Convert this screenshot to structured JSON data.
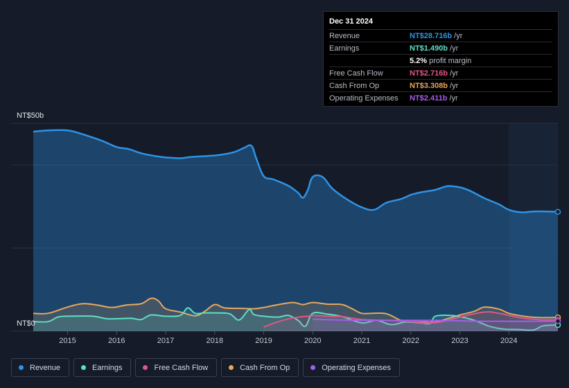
{
  "tooltip": {
    "date": "Dec 31 2024",
    "rows": [
      {
        "name": "Revenue",
        "value": "NT$28.716b",
        "unit": "/yr",
        "color": "#2e93e6"
      },
      {
        "name": "Earnings",
        "value": "NT$1.490b",
        "unit": "/yr",
        "color": "#5ee0c6"
      },
      {
        "name": "",
        "value": "5.2%",
        "unit": "profit margin",
        "color": "#ffffff"
      },
      {
        "name": "Free Cash Flow",
        "value": "NT$2.716b",
        "unit": "/yr",
        "color": "#e0568a"
      },
      {
        "name": "Cash From Op",
        "value": "NT$3.308b",
        "unit": "/yr",
        "color": "#e8a85c"
      },
      {
        "name": "Operating Expenses",
        "value": "NT$2.411b",
        "unit": "/yr",
        "color": "#a45ee8"
      }
    ]
  },
  "legend": [
    {
      "label": "Revenue",
      "color": "#2e93e6"
    },
    {
      "label": "Earnings",
      "color": "#5ee0c6"
    },
    {
      "label": "Free Cash Flow",
      "color": "#e0568a"
    },
    {
      "label": "Cash From Op",
      "color": "#e8a85c"
    },
    {
      "label": "Operating Expenses",
      "color": "#a45ee8"
    }
  ],
  "chart_data": {
    "type": "area",
    "title": "",
    "xlabel": "",
    "ylabel": "",
    "y_axis_labels": {
      "top": "NT$50b",
      "bottom": "NT$0"
    },
    "ylim": [
      0,
      50
    ],
    "xlim": [
      2014.3,
      2025.0
    ],
    "x_ticks": [
      2015,
      2016,
      2017,
      2018,
      2019,
      2020,
      2021,
      2022,
      2023,
      2024
    ],
    "x_tick_labels": [
      "2015",
      "2016",
      "2017",
      "2018",
      "2019",
      "2020",
      "2021",
      "2022",
      "2023",
      "2024"
    ],
    "highlight_from": 2024.0,
    "series": [
      {
        "name": "Revenue",
        "color": "#2e93e6",
        "x": [
          2014.3,
          2014.6,
          2015.0,
          2015.3,
          2015.7,
          2016.0,
          2016.25,
          2016.5,
          2016.8,
          2017.0,
          2017.3,
          2017.5,
          2017.8,
          2018.1,
          2018.4,
          2018.6,
          2018.75,
          2018.85,
          2019.0,
          2019.2,
          2019.5,
          2019.7,
          2019.8,
          2019.9,
          2020.0,
          2020.2,
          2020.4,
          2020.7,
          2021.0,
          2021.25,
          2021.5,
          2021.8,
          2022.0,
          2022.2,
          2022.5,
          2022.75,
          2023.0,
          2023.2,
          2023.5,
          2023.8,
          2024.0,
          2024.25,
          2024.5,
          2024.75,
          2025.0
        ],
        "values": [
          48.0,
          48.3,
          48.3,
          47.4,
          45.8,
          44.3,
          43.8,
          42.8,
          42.1,
          41.8,
          41.6,
          41.9,
          42.1,
          42.4,
          43.1,
          44.1,
          44.6,
          41.5,
          37.3,
          36.5,
          35.0,
          33.3,
          32.1,
          34.0,
          37.1,
          37.1,
          34.3,
          31.7,
          29.8,
          29.2,
          30.9,
          31.8,
          32.8,
          33.4,
          34.0,
          34.9,
          34.6,
          33.8,
          32.0,
          30.5,
          29.2,
          28.6,
          28.8,
          28.8,
          28.716
        ]
      },
      {
        "name": "Cash From Op",
        "color": "#e8a85c",
        "x": [
          2014.3,
          2014.6,
          2015.0,
          2015.3,
          2015.6,
          2015.9,
          2016.2,
          2016.5,
          2016.7,
          2016.85,
          2017.0,
          2017.3,
          2017.6,
          2017.8,
          2018.0,
          2018.2,
          2018.5,
          2018.8,
          2019.0,
          2019.3,
          2019.6,
          2019.8,
          2020.0,
          2020.3,
          2020.6,
          2020.8,
          2021.0,
          2021.2,
          2021.5,
          2021.8,
          2022.0,
          2022.3,
          2022.5,
          2022.8,
          2023.0,
          2023.3,
          2023.5,
          2023.8,
          2024.0,
          2024.3,
          2024.6,
          2025.0
        ],
        "values": [
          4.3,
          4.3,
          5.8,
          6.6,
          6.3,
          5.7,
          6.3,
          6.6,
          7.9,
          7.3,
          5.4,
          4.6,
          3.7,
          4.8,
          6.4,
          5.6,
          5.5,
          5.4,
          5.7,
          6.4,
          6.9,
          6.4,
          6.9,
          6.5,
          6.4,
          5.4,
          4.3,
          4.3,
          4.2,
          2.6,
          2.3,
          2.2,
          2.2,
          3.2,
          3.9,
          4.8,
          5.8,
          5.3,
          4.3,
          3.6,
          3.3,
          3.308
        ]
      },
      {
        "name": "Earnings",
        "color": "#5ee0c6",
        "x": [
          2014.3,
          2014.6,
          2014.8,
          2015.0,
          2015.5,
          2015.8,
          2016.0,
          2016.3,
          2016.5,
          2016.7,
          2017.0,
          2017.3,
          2017.45,
          2017.6,
          2017.8,
          2018.0,
          2018.3,
          2018.5,
          2018.7,
          2018.8,
          2019.0,
          2019.3,
          2019.5,
          2019.7,
          2019.85,
          2020.0,
          2020.3,
          2020.6,
          2021.0,
          2021.3,
          2021.6,
          2021.9,
          2022.2,
          2022.4,
          2022.5,
          2022.8,
          2023.0,
          2023.3,
          2023.6,
          2023.9,
          2024.2,
          2024.5,
          2024.7,
          2025.0
        ],
        "values": [
          2.3,
          2.3,
          3.4,
          3.6,
          3.6,
          3.0,
          3.0,
          3.1,
          2.8,
          3.9,
          3.6,
          3.8,
          5.6,
          4.3,
          4.4,
          4.4,
          4.2,
          2.7,
          5.2,
          4.0,
          3.6,
          3.4,
          3.8,
          2.6,
          1.2,
          4.3,
          4.1,
          3.5,
          2.0,
          2.6,
          1.6,
          2.2,
          2.0,
          1.9,
          3.6,
          3.8,
          3.5,
          2.6,
          1.2,
          0.5,
          0.4,
          0.3,
          1.3,
          1.49
        ]
      },
      {
        "name": "Free Cash Flow",
        "color": "#e0568a",
        "x": [
          2019.0,
          2019.3,
          2019.6,
          2019.9,
          2020.0,
          2020.3,
          2020.6,
          2021.0,
          2021.5,
          2022.0,
          2022.3,
          2022.6,
          2023.0,
          2023.5,
          2023.8,
          2024.2,
          2024.6,
          2025.0
        ],
        "values": [
          1.0,
          2.3,
          3.2,
          3.6,
          3.8,
          3.6,
          3.5,
          2.8,
          2.6,
          2.3,
          2.0,
          2.2,
          3.4,
          4.6,
          4.3,
          3.3,
          2.8,
          2.716
        ]
      },
      {
        "name": "Operating Expenses",
        "color": "#a45ee8",
        "x": [
          2020.0,
          2020.5,
          2021.0,
          2021.5,
          2022.0,
          2022.5,
          2023.0,
          2023.5,
          2024.0,
          2024.5,
          2025.0
        ],
        "values": [
          2.9,
          2.7,
          2.6,
          2.6,
          2.6,
          2.6,
          2.5,
          2.4,
          2.4,
          2.4,
          2.411
        ]
      }
    ]
  }
}
